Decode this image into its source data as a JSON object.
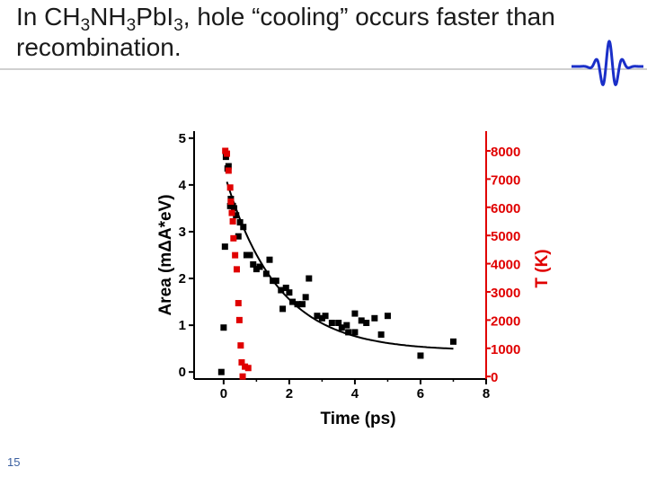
{
  "slide": {
    "title_parts": [
      "In CH",
      "3",
      "NH",
      "3",
      "PbI",
      "3",
      ", hole “cooling” occurs faster than recombination."
    ],
    "page_number": "15",
    "logo_icon": "wave-packet-icon"
  },
  "colors": {
    "accent": "#e00000",
    "black_series": "#000000",
    "logo": "#1a2fc8",
    "title": "#1a1a1a",
    "page_number": "#3a5fa0"
  },
  "chart_data": {
    "type": "scatter",
    "title": "",
    "xlabel": "Time (ps)",
    "ylabel": "Area (mΔA*eV)",
    "y2label": "T (K)",
    "xlim": [
      -0.9,
      8
    ],
    "ylim": [
      -0.15,
      5.15
    ],
    "y2lim": [
      -90,
      8700
    ],
    "xticks": [
      0,
      2,
      4,
      6,
      8
    ],
    "yticks": [
      0,
      1,
      2,
      3,
      4,
      5
    ],
    "y2ticks": [
      0,
      1000,
      2000,
      3000,
      4000,
      5000,
      6000,
      7000,
      8000
    ],
    "series": [
      {
        "name": "Area",
        "axis": "left",
        "color": "#000000",
        "points": [
          [
            -0.07,
            0.0
          ],
          [
            0.0,
            0.95
          ],
          [
            0.04,
            2.68
          ],
          [
            0.07,
            4.6
          ],
          [
            0.12,
            4.35
          ],
          [
            0.15,
            4.4
          ],
          [
            0.2,
            3.55
          ],
          [
            0.22,
            3.7
          ],
          [
            0.28,
            3.55
          ],
          [
            0.32,
            3.5
          ],
          [
            0.38,
            3.35
          ],
          [
            0.45,
            2.9
          ],
          [
            0.5,
            3.2
          ],
          [
            0.6,
            3.1
          ],
          [
            0.7,
            2.5
          ],
          [
            0.8,
            2.5
          ],
          [
            0.9,
            2.3
          ],
          [
            1.0,
            2.2
          ],
          [
            1.1,
            2.25
          ],
          [
            1.3,
            2.1
          ],
          [
            1.4,
            2.4
          ],
          [
            1.5,
            1.95
          ],
          [
            1.6,
            1.95
          ],
          [
            1.75,
            1.75
          ],
          [
            1.8,
            1.35
          ],
          [
            1.9,
            1.8
          ],
          [
            2.0,
            1.7
          ],
          [
            2.1,
            1.5
          ],
          [
            2.25,
            1.45
          ],
          [
            2.4,
            1.45
          ],
          [
            2.5,
            1.6
          ],
          [
            2.6,
            2.0
          ],
          [
            2.85,
            1.2
          ],
          [
            3.0,
            1.15
          ],
          [
            3.1,
            1.2
          ],
          [
            3.3,
            1.05
          ],
          [
            3.5,
            1.05
          ],
          [
            3.6,
            0.95
          ],
          [
            3.75,
            1.0
          ],
          [
            3.8,
            0.85
          ],
          [
            4.0,
            0.85
          ],
          [
            4.0,
            1.25
          ],
          [
            4.2,
            1.1
          ],
          [
            4.35,
            1.05
          ],
          [
            4.6,
            1.15
          ],
          [
            4.8,
            0.8
          ],
          [
            5.0,
            1.2
          ],
          [
            6.0,
            0.35
          ],
          [
            7.0,
            0.65
          ]
        ],
        "fit": {
          "model": "y = 0.45 + 3.85*exp(-t/1.6)",
          "t_start": 0.1,
          "t_end": 7.0
        }
      },
      {
        "name": "T",
        "axis": "right",
        "color": "#e00000",
        "points": [
          [
            0.05,
            8000
          ],
          [
            0.1,
            7900
          ],
          [
            0.15,
            7300
          ],
          [
            0.2,
            6700
          ],
          [
            0.22,
            6200
          ],
          [
            0.25,
            5800
          ],
          [
            0.28,
            5500
          ],
          [
            0.3,
            4900
          ],
          [
            0.35,
            4300
          ],
          [
            0.4,
            3800
          ],
          [
            0.45,
            2600
          ],
          [
            0.48,
            2000
          ],
          [
            0.52,
            1100
          ],
          [
            0.55,
            500
          ],
          [
            0.58,
            0
          ],
          [
            0.65,
            350
          ],
          [
            0.75,
            300
          ]
        ]
      }
    ]
  }
}
